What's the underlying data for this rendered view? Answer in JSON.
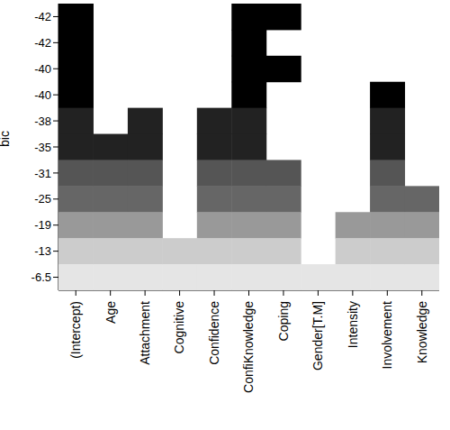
{
  "chart_data": {
    "type": "heatmap",
    "y_label": "bic",
    "x_categories": [
      "(Intercept)",
      "Age",
      "Attachment",
      "Cognitive",
      "Confidence",
      "ConfiKnowledge",
      "Coping",
      "Gender[T.M]",
      "Intensity",
      "Involvement",
      "Knowledge"
    ],
    "y_categories": [
      -42,
      -42,
      -40,
      -40,
      -38,
      -35,
      -31,
      -25,
      -19,
      -13,
      -6.5
    ],
    "cells": [
      [
        1,
        0,
        0,
        0,
        0,
        1,
        1,
        0,
        0,
        0,
        0
      ],
      [
        1,
        0,
        0,
        0,
        0,
        1,
        0,
        0,
        0,
        0,
        0
      ],
      [
        1,
        0,
        0,
        0,
        0,
        1,
        1,
        0,
        0,
        0,
        0
      ],
      [
        1,
        0,
        0,
        0,
        0,
        1,
        0,
        0,
        0,
        1,
        0
      ],
      [
        1,
        0,
        1,
        0,
        1,
        1,
        0,
        0,
        0,
        1,
        0
      ],
      [
        1,
        1,
        1,
        0,
        1,
        1,
        0,
        0,
        0,
        1,
        0
      ],
      [
        1,
        1,
        1,
        0,
        1,
        1,
        1,
        0,
        0,
        1,
        0
      ],
      [
        1,
        1,
        1,
        0,
        1,
        1,
        1,
        0,
        0,
        1,
        1
      ],
      [
        1,
        1,
        1,
        0,
        1,
        1,
        1,
        0,
        1,
        1,
        1
      ],
      [
        1,
        1,
        1,
        1,
        1,
        1,
        1,
        0,
        1,
        1,
        1
      ],
      [
        1,
        1,
        1,
        1,
        1,
        1,
        1,
        1,
        1,
        1,
        1
      ]
    ],
    "colors": [
      "#000000",
      "#000000",
      "#000000",
      "#000000",
      "#222222",
      "#222222",
      "#555555",
      "#666666",
      "#999999",
      "#cccccc",
      "#e5e5e5"
    ]
  }
}
